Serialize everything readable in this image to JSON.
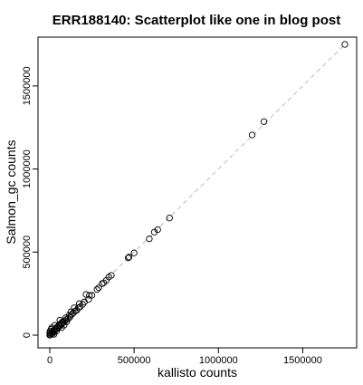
{
  "chart_data": {
    "type": "scatter",
    "title": "ERR188140: Scatterplot like one in blog post",
    "xlabel": "kallisto counts",
    "ylabel": "Salmon_gc counts",
    "xlim": [
      0,
      1750000
    ],
    "ylim": [
      0,
      1750000
    ],
    "xticks": [
      0,
      500000,
      1000000,
      1500000
    ],
    "yticks": [
      0,
      500000,
      1000000,
      1500000
    ],
    "xtick_labels": [
      "0",
      "500000",
      "1000000",
      "1500000"
    ],
    "ytick_labels": [
      "0",
      "500000",
      "1000000",
      "1500000"
    ],
    "reference_line": "y = x (dashed)",
    "grid": false,
    "points": [
      [
        1750000,
        1750000
      ],
      [
        1270000,
        1285000
      ],
      [
        1200000,
        1205000
      ],
      [
        710000,
        705000
      ],
      [
        640000,
        635000
      ],
      [
        620000,
        620000
      ],
      [
        590000,
        580000
      ],
      [
        500000,
        495000
      ],
      [
        470000,
        470000
      ],
      [
        465000,
        465000
      ],
      [
        365000,
        360000
      ],
      [
        350000,
        350000
      ],
      [
        335000,
        330000
      ],
      [
        320000,
        315000
      ],
      [
        310000,
        310000
      ],
      [
        290000,
        285000
      ],
      [
        280000,
        275000
      ],
      [
        250000,
        240000
      ],
      [
        235000,
        240000
      ],
      [
        230000,
        215000
      ],
      [
        215000,
        245000
      ],
      [
        205000,
        200000
      ],
      [
        195000,
        185000
      ],
      [
        180000,
        170000
      ],
      [
        170000,
        165000
      ],
      [
        160000,
        150000
      ],
      [
        150000,
        145000
      ],
      [
        140000,
        135000
      ],
      [
        130000,
        125000
      ],
      [
        120000,
        110000
      ],
      [
        115000,
        120000
      ],
      [
        110000,
        100000
      ],
      [
        100000,
        95000
      ],
      [
        95000,
        105000
      ],
      [
        90000,
        85000
      ],
      [
        80000,
        78000
      ],
      [
        75000,
        80000
      ],
      [
        70000,
        65000
      ],
      [
        65000,
        70000
      ],
      [
        60000,
        55000
      ],
      [
        55000,
        60000
      ],
      [
        50000,
        45000
      ],
      [
        45000,
        50000
      ],
      [
        40000,
        38000
      ],
      [
        35000,
        40000
      ],
      [
        30000,
        28000
      ],
      [
        25000,
        30000
      ],
      [
        20000,
        18000
      ],
      [
        15000,
        20000
      ],
      [
        10000,
        12000
      ],
      [
        5000,
        8000
      ],
      [
        3000,
        2000
      ],
      [
        1000,
        1000
      ],
      [
        0,
        0
      ],
      [
        2000,
        25000
      ],
      [
        8000,
        35000
      ],
      [
        12000,
        45000
      ],
      [
        25000,
        5000
      ],
      [
        18000,
        10000
      ],
      [
        0,
        15000
      ],
      [
        60000,
        90000
      ],
      [
        85000,
        60000
      ],
      [
        125000,
        140000
      ],
      [
        145000,
        165000
      ],
      [
        175000,
        190000
      ],
      [
        100000,
        80000
      ],
      [
        40000,
        25000
      ],
      [
        30000,
        60000
      ],
      [
        70000,
        45000
      ]
    ]
  }
}
